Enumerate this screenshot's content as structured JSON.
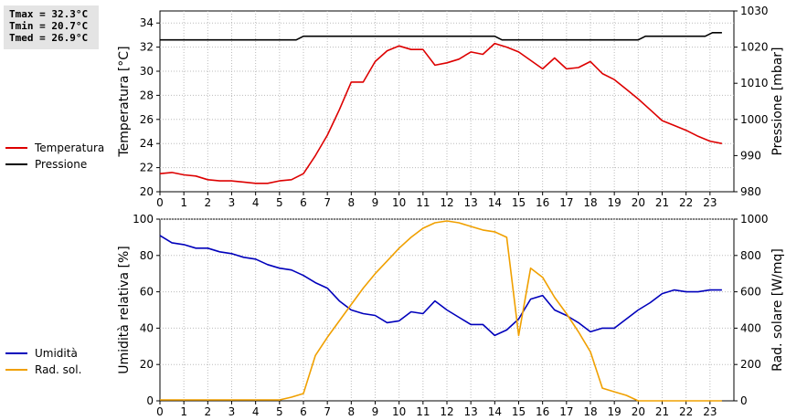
{
  "stats": {
    "tmax": "Tmax = 32.3°C",
    "tmin": "Tmin = 20.7°C",
    "tmed": "Tmed = 26.9°C"
  },
  "chart_data": [
    {
      "type": "line",
      "x_ticks": [
        "0",
        "1",
        "2",
        "3",
        "4",
        "5",
        "6",
        "7",
        "8",
        "9",
        "10",
        "11",
        "12",
        "13",
        "14",
        "15",
        "16",
        "17",
        "18",
        "19",
        "20",
        "21",
        "22",
        "23"
      ],
      "xlim": [
        0,
        24
      ],
      "ylabel": "Temperatura [°C]",
      "y2label": "Pressione [mbar]",
      "ylim": [
        20,
        35
      ],
      "y_ticks": [
        20,
        22,
        24,
        26,
        28,
        30,
        32,
        34
      ],
      "y2lim": [
        980,
        1030
      ],
      "y2_ticks": [
        980,
        990,
        1000,
        1010,
        1020,
        1030
      ],
      "grid": true,
      "legend_position": "left",
      "series": [
        {
          "name": "Temperatura",
          "axis": "left",
          "color": "#dd0000",
          "x": [
            0,
            0.5,
            1,
            1.5,
            2,
            2.5,
            3,
            3.5,
            4,
            4.5,
            5,
            5.5,
            6,
            6.5,
            7,
            7.5,
            8,
            8.5,
            9,
            9.5,
            10,
            10.5,
            11,
            11.5,
            12,
            12.5,
            13,
            13.5,
            14,
            14.5,
            15,
            15.5,
            16,
            16.5,
            17,
            17.5,
            18,
            18.5,
            19,
            19.5,
            20,
            20.5,
            21,
            21.5,
            22,
            22.5,
            23,
            23.5
          ],
          "values": [
            21.5,
            21.6,
            21.4,
            21.3,
            21.0,
            20.9,
            20.9,
            20.8,
            20.7,
            20.7,
            20.9,
            21.0,
            21.5,
            23.0,
            24.7,
            26.8,
            29.1,
            29.1,
            30.8,
            31.7,
            32.1,
            31.8,
            31.8,
            30.5,
            30.7,
            31.0,
            31.6,
            31.4,
            32.3,
            32.0,
            31.6,
            30.9,
            30.2,
            31.1,
            30.2,
            30.3,
            30.8,
            29.8,
            29.3,
            28.5,
            27.7,
            26.8,
            25.9,
            25.5,
            25.1,
            24.6,
            24.2,
            24.0
          ]
        },
        {
          "name": "Pressione",
          "axis": "right",
          "color": "#000000",
          "x": [
            0,
            5.7,
            6.0,
            14.0,
            14.3,
            20.0,
            20.3,
            22.8,
            23.1,
            23.5
          ],
          "values": [
            1022,
            1022,
            1023,
            1023,
            1022,
            1022,
            1023,
            1023,
            1024,
            1024
          ]
        }
      ]
    },
    {
      "type": "line",
      "x_ticks": [
        "0",
        "1",
        "2",
        "3",
        "4",
        "5",
        "6",
        "7",
        "8",
        "9",
        "10",
        "11",
        "12",
        "13",
        "14",
        "15",
        "16",
        "17",
        "18",
        "19",
        "20",
        "21",
        "22",
        "23"
      ],
      "xlim": [
        0,
        24
      ],
      "ylabel": "Umidità relativa [%]",
      "y2label": "Rad. solare [W/mq]",
      "ylim": [
        0,
        100
      ],
      "y_ticks": [
        0,
        20,
        40,
        60,
        80,
        100
      ],
      "y2lim": [
        0,
        1000
      ],
      "y2_ticks": [
        0,
        200,
        400,
        600,
        800,
        1000
      ],
      "grid": true,
      "legend_position": "left",
      "series": [
        {
          "name": "Umidità",
          "axis": "left",
          "color": "#0000bb",
          "x": [
            0,
            0.5,
            1,
            1.5,
            2,
            2.5,
            3,
            3.5,
            4,
            4.5,
            5,
            5.5,
            6,
            6.5,
            7,
            7.5,
            8,
            8.5,
            9,
            9.5,
            10,
            10.5,
            11,
            11.5,
            12,
            12.5,
            13,
            13.5,
            14,
            14.5,
            15,
            15.5,
            16,
            16.5,
            17,
            17.5,
            18,
            18.5,
            19,
            19.5,
            20,
            20.5,
            21,
            21.5,
            22,
            22.5,
            23,
            23.5
          ],
          "values": [
            91,
            87,
            86,
            84,
            84,
            82,
            81,
            79,
            78,
            75,
            73,
            72,
            69,
            65,
            62,
            55,
            50,
            48,
            47,
            43,
            44,
            49,
            48,
            55,
            50,
            46,
            42,
            42,
            36,
            39,
            45,
            56,
            58,
            50,
            47,
            43,
            38,
            40,
            40,
            45,
            50,
            54,
            59,
            61,
            60,
            60,
            61,
            61
          ]
        },
        {
          "name": "Rad. sol.",
          "axis": "right",
          "color": "#f0a000",
          "x": [
            0,
            1,
            2,
            3,
            4,
            5,
            5.5,
            6,
            6.5,
            7,
            7.5,
            8,
            8.5,
            9,
            9.5,
            10,
            10.5,
            11,
            11.5,
            12,
            12.5,
            13,
            13.5,
            14,
            14.5,
            15,
            15.5,
            16,
            16.5,
            17,
            17.5,
            18,
            18.5,
            19,
            19.5,
            20,
            20.5,
            21,
            22,
            23,
            23.5
          ],
          "values": [
            5,
            5,
            5,
            5,
            5,
            5,
            20,
            40,
            250,
            350,
            440,
            530,
            620,
            700,
            770,
            840,
            900,
            950,
            980,
            990,
            980,
            960,
            940,
            930,
            900,
            360,
            730,
            680,
            570,
            480,
            380,
            270,
            70,
            50,
            30,
            0,
            0,
            0,
            0,
            0,
            0
          ]
        }
      ]
    }
  ]
}
